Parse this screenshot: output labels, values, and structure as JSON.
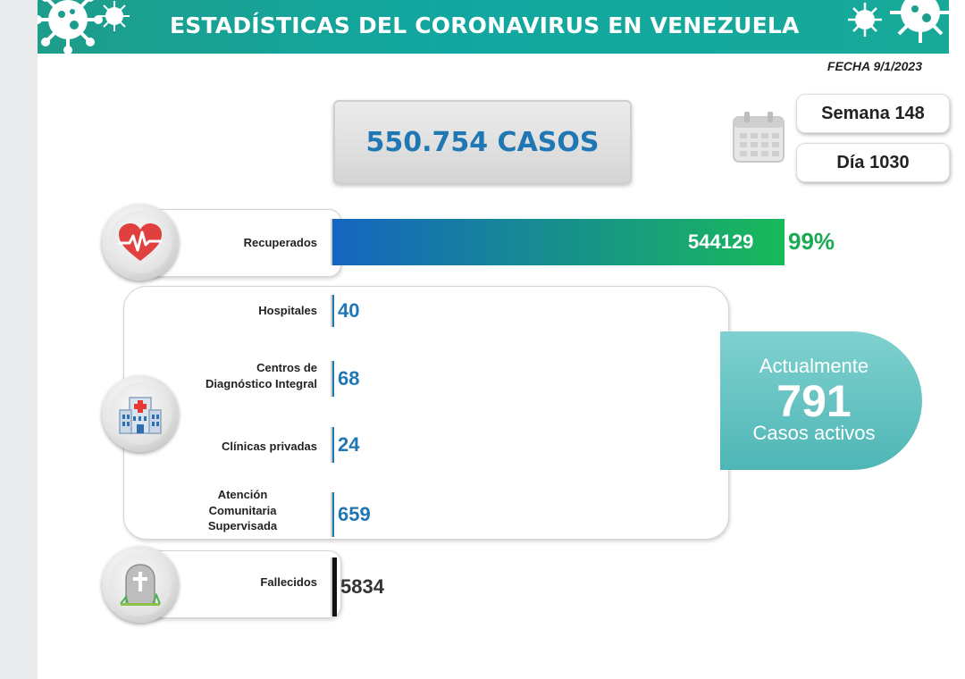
{
  "header": {
    "title": "ESTADÍSTICAS DEL CORONAVIRUS EN VENEZUELA",
    "color": "#11a7a0"
  },
  "date_label": "FECHA 9/1/2023",
  "total_cases_label": "550.754 CASOS",
  "week_label": "Semana 148",
  "day_label": "Día 1030",
  "active": {
    "top_text": "Actualmente",
    "count": "791",
    "bottom_text": "Casos activos"
  },
  "chart_data": {
    "type": "bar",
    "categories": [
      "Recuperados",
      "Hospitales",
      "Centros de Diagnóstico Integral",
      "Clínicas privadas",
      "Atención Comunitaria Supervisada",
      "Fallecidos"
    ],
    "values": [
      544129,
      40,
      68,
      24,
      659,
      5834
    ],
    "value_labels": [
      "544129",
      "40",
      "68",
      "24",
      "659",
      "5834"
    ],
    "recovered_percent_label": "99%",
    "label_lines": {
      "cdi": [
        "Centros de",
        "Diagnóstico Integral"
      ],
      "acs": [
        "Atención",
        "Comunitaria",
        "Supervisada"
      ]
    },
    "colors": {
      "recovered_start": "#1565c0",
      "recovered_end": "#19b95a",
      "hospital_values": "#1f78b4",
      "deaths_bar": "#111111",
      "percent": "#1aaa55"
    }
  },
  "icons": [
    "virus-icon",
    "heart-pulse-icon",
    "hospital-icon",
    "tombstone-icon",
    "calendar-icon"
  ]
}
